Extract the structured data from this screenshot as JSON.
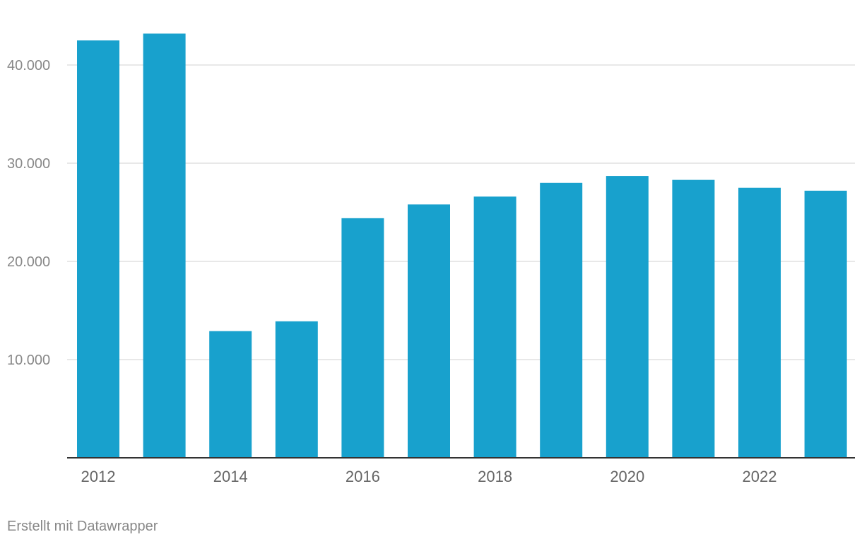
{
  "chart_data": {
    "type": "bar",
    "categories": [
      "2012",
      "2013",
      "2014",
      "2015",
      "2016",
      "2017",
      "2018",
      "2019",
      "2020",
      "2021",
      "2022",
      "2023"
    ],
    "values": [
      42500,
      43200,
      12900,
      13900,
      24400,
      25800,
      26600,
      28000,
      28700,
      28300,
      27500,
      27200
    ],
    "x_tick_labels": [
      "2012",
      "2014",
      "2016",
      "2018",
      "2020",
      "2022"
    ],
    "y_ticks": [
      10000,
      20000,
      30000,
      40000
    ],
    "y_tick_labels": [
      "10.000",
      "20.000",
      "30.000",
      "40.000"
    ],
    "ylim": [
      0,
      45000
    ],
    "grid": true,
    "title": "",
    "xlabel": "",
    "ylabel": ""
  },
  "colors": {
    "bar": "#18a1cd",
    "grid": "#e0e0e0",
    "axis": "#333333",
    "tick_text": "#888888",
    "x_tick_text": "#666666"
  },
  "footer": {
    "credit": "Erstellt mit Datawrapper"
  }
}
